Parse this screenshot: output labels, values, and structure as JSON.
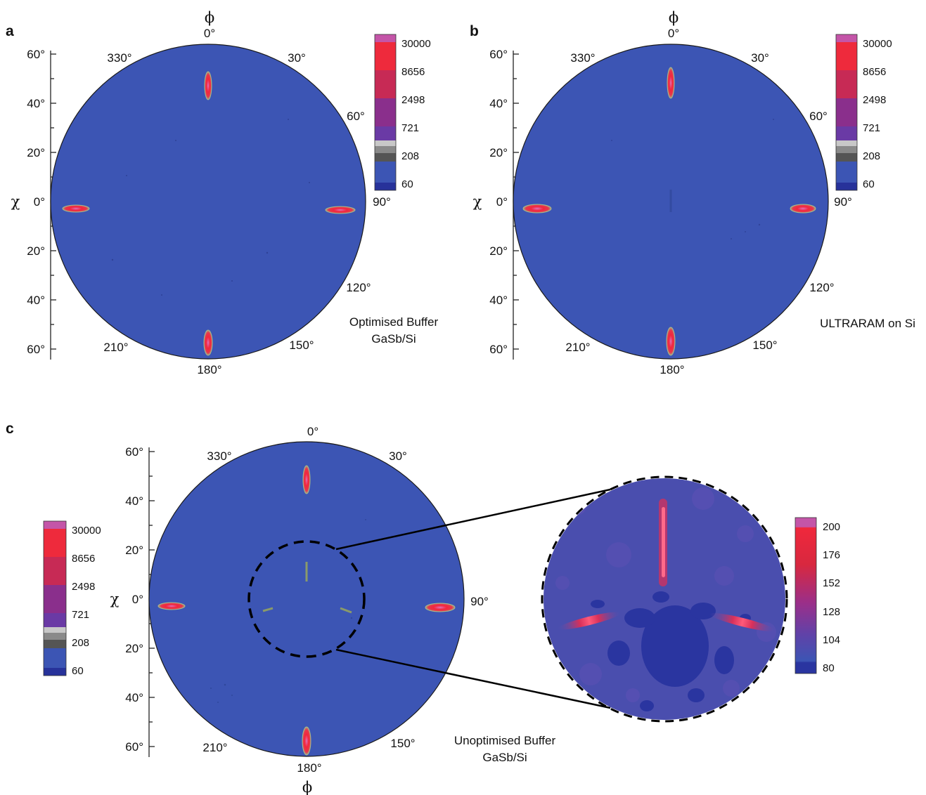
{
  "panels": [
    {
      "letter": "a",
      "phi_symbol": "ϕ",
      "chi_symbol": "χ",
      "chi_ticks_top": [
        "60°",
        "40°",
        "20°"
      ],
      "chi_zero": "0°",
      "chi_ticks_bottom": [
        "20°",
        "40°",
        "60°"
      ],
      "phi_labels": [
        "0°",
        "30°",
        "60°",
        "90°",
        "120°",
        "150°",
        "180°",
        "210°",
        "330°"
      ],
      "caption": [
        "Optimised Buffer",
        "GaSb/Si"
      ],
      "colorbar": [
        "30000",
        "8656",
        "2498",
        "721",
        "208",
        "60"
      ]
    },
    {
      "letter": "b",
      "phi_symbol": "ϕ",
      "chi_symbol": "χ",
      "chi_ticks_top": [
        "60°",
        "40°",
        "20°"
      ],
      "chi_zero": "0°",
      "chi_ticks_bottom": [
        "20°",
        "40°",
        "60°"
      ],
      "phi_labels": [
        "0°",
        "30°",
        "60°",
        "90°",
        "120°",
        "150°",
        "180°",
        "210°",
        "330°"
      ],
      "caption": [
        "ULTRARAM on Si"
      ],
      "colorbar": [
        "30000",
        "8656",
        "2498",
        "721",
        "208",
        "60"
      ]
    },
    {
      "letter": "c",
      "phi_symbol": "ϕ",
      "chi_symbol": "χ",
      "chi_ticks_top": [
        "60°",
        "40°",
        "20°"
      ],
      "chi_zero": "0°",
      "chi_ticks_bottom": [
        "20°",
        "40°",
        "60°"
      ],
      "phi_labels": [
        "0°",
        "30°",
        "90°",
        "150°",
        "180°",
        "210°",
        "330°"
      ],
      "caption": [
        "Unoptimised Buffer",
        "GaSb/Si"
      ],
      "colorbar": [
        "30000",
        "8656",
        "2498",
        "721",
        "208",
        "60"
      ],
      "inset_colorbar": [
        "200",
        "176",
        "152",
        "128",
        "104",
        "80"
      ]
    }
  ],
  "colors": {
    "background_blue": "#3c55b4",
    "inset_blue": "#4550b0",
    "peak_red": "#f2263d",
    "peak_pink": "#d65aa8",
    "cb_top": "#c455a8",
    "cb_red": "#ee2a3c",
    "cb_purple": "#6a3aa5",
    "cb_grey_light": "#c8c8c8",
    "cb_grey": "#8a8a8a",
    "cb_grey_dark": "#555555",
    "cb_blue": "#3c55b4",
    "cb_navy": "#27329a"
  },
  "chart_data": [
    {
      "type": "heatmap",
      "title": "",
      "panel": "a",
      "projection": "polar pole figure",
      "phi_range_deg": [
        0,
        360
      ],
      "chi_range_deg": [
        0,
        60
      ],
      "color_scale": "log",
      "color_levels": [
        60,
        208,
        721,
        2498,
        8656,
        30000
      ],
      "peaks": [
        {
          "phi": 0,
          "chi": 50
        },
        {
          "phi": 90,
          "chi": 55
        },
        {
          "phi": 180,
          "chi": 57
        },
        {
          "phi": 270,
          "chi": 58
        }
      ],
      "annotation": [
        "Optimised Buffer",
        "GaSb/Si"
      ]
    },
    {
      "type": "heatmap",
      "title": "",
      "panel": "b",
      "projection": "polar pole figure",
      "phi_range_deg": [
        0,
        360
      ],
      "chi_range_deg": [
        0,
        60
      ],
      "color_scale": "log",
      "color_levels": [
        60,
        208,
        721,
        2498,
        8656,
        30000
      ],
      "peaks": [
        {
          "phi": 0,
          "chi": 50
        },
        {
          "phi": 90,
          "chi": 55
        },
        {
          "phi": 180,
          "chi": 57
        },
        {
          "phi": 270,
          "chi": 58
        }
      ],
      "annotation": [
        "ULTRARAM on Si"
      ]
    },
    {
      "type": "heatmap",
      "title": "",
      "panel": "c",
      "projection": "polar pole figure",
      "phi_range_deg": [
        0,
        360
      ],
      "chi_range_deg": [
        0,
        60
      ],
      "color_scale": "log",
      "color_levels": [
        60,
        208,
        721,
        2498,
        8656,
        30000
      ],
      "peaks": [
        {
          "phi": 0,
          "chi": 50
        },
        {
          "phi": 90,
          "chi": 55
        },
        {
          "phi": 180,
          "chi": 57
        },
        {
          "phi": 270,
          "chi": 58
        }
      ],
      "twin_peaks": [
        {
          "phi": 0,
          "chi": 10
        },
        {
          "phi": 120,
          "chi": 14
        },
        {
          "phi": 240,
          "chi": 14
        }
      ],
      "inset_color_levels": [
        80,
        104,
        128,
        152,
        176,
        200
      ],
      "annotation": [
        "Unoptimised Buffer",
        "GaSb/Si"
      ]
    }
  ]
}
